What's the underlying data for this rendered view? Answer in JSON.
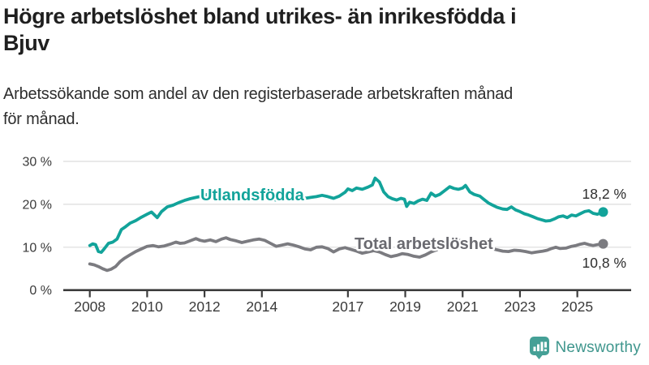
{
  "header": {
    "title": "Högre arbetslöshet bland utrikes- än inrikesfödda i Bjuv",
    "title_lines": [
      "Högre arbetslöshet bland utrikes- än inrikesfödda i",
      "Bjuv"
    ],
    "subtitle": "Arbetssökande som andel av den registerbaserade arbetskraften månad för månad.",
    "subtitle_lines": [
      "Arbetssökande som andel av den registerbaserade arbetskraften månad",
      "för månad."
    ]
  },
  "branding": {
    "name": "Newsworthy",
    "icon": "newsworthy-bar-chart-bubble-icon",
    "icon_color": "#45a096",
    "text_color": "#3f968d"
  },
  "chart_data": {
    "type": "line",
    "title": "Högre arbetslöshet bland utrikes- än inrikesfödda i Bjuv",
    "xlabel": "",
    "ylabel": "",
    "y_unit": "%",
    "ylim": [
      0,
      30
    ],
    "xlim": [
      2007.9,
      2026.8
    ],
    "grid": "horizontal",
    "legend_position": "inline-labels",
    "y_ticks": [
      0,
      10,
      20,
      30
    ],
    "y_tick_labels": [
      "0 %",
      "10 %",
      "20 %",
      "30 %"
    ],
    "x_ticks": [
      2008,
      2010,
      2012,
      2014,
      2017,
      2019,
      2021,
      2023,
      2025
    ],
    "x_tick_labels": [
      "2008",
      "2010",
      "2012",
      "2014",
      "2017",
      "2019",
      "2021",
      "2023",
      "2025"
    ],
    "series": [
      {
        "name": "Utlandsfödda",
        "color": "#12a39a",
        "end_label": "18,2 %",
        "end_value": 18.2,
        "points": [
          [
            2008.0,
            10.4
          ],
          [
            2008.1,
            10.8
          ],
          [
            2008.2,
            10.6
          ],
          [
            2008.3,
            9.0
          ],
          [
            2008.4,
            8.8
          ],
          [
            2008.5,
            9.6
          ],
          [
            2008.65,
            10.9
          ],
          [
            2008.8,
            11.2
          ],
          [
            2008.95,
            11.9
          ],
          [
            2009.1,
            14.1
          ],
          [
            2009.25,
            14.8
          ],
          [
            2009.4,
            15.6
          ],
          [
            2009.6,
            16.2
          ],
          [
            2009.8,
            17.0
          ],
          [
            2010.0,
            17.7
          ],
          [
            2010.15,
            18.2
          ],
          [
            2010.35,
            16.9
          ],
          [
            2010.5,
            18.3
          ],
          [
            2010.7,
            19.4
          ],
          [
            2010.9,
            19.8
          ],
          [
            2011.1,
            20.4
          ],
          [
            2011.3,
            20.9
          ],
          [
            2011.5,
            21.3
          ],
          [
            2011.7,
            21.6
          ],
          [
            2011.9,
            21.9
          ],
          [
            2012.1,
            22.3
          ],
          [
            2012.3,
            22.0
          ],
          [
            2012.5,
            22.4
          ],
          [
            2012.7,
            22.1
          ],
          [
            2012.9,
            22.3
          ],
          [
            2013.1,
            22.5
          ],
          [
            2013.3,
            22.1
          ],
          [
            2013.5,
            21.8
          ],
          [
            2013.7,
            22.0
          ],
          [
            2013.9,
            21.7
          ],
          [
            2014.1,
            21.9
          ],
          [
            2014.3,
            21.3
          ],
          [
            2014.5,
            21.0
          ],
          [
            2014.7,
            21.3
          ],
          [
            2014.9,
            21.5
          ],
          [
            2015.1,
            21.2
          ],
          [
            2015.3,
            21.0
          ],
          [
            2015.5,
            21.4
          ],
          [
            2015.7,
            21.6
          ],
          [
            2015.9,
            21.8
          ],
          [
            2016.1,
            22.1
          ],
          [
            2016.3,
            21.8
          ],
          [
            2016.5,
            21.4
          ],
          [
            2016.7,
            21.9
          ],
          [
            2016.9,
            22.8
          ],
          [
            2017.0,
            23.6
          ],
          [
            2017.15,
            23.2
          ],
          [
            2017.3,
            23.8
          ],
          [
            2017.5,
            23.5
          ],
          [
            2017.7,
            24.0
          ],
          [
            2017.85,
            24.5
          ],
          [
            2017.95,
            26.1
          ],
          [
            2018.1,
            25.2
          ],
          [
            2018.25,
            22.9
          ],
          [
            2018.4,
            21.8
          ],
          [
            2018.55,
            21.3
          ],
          [
            2018.7,
            21.0
          ],
          [
            2018.85,
            21.4
          ],
          [
            2018.97,
            21.2
          ],
          [
            2019.05,
            19.5
          ],
          [
            2019.15,
            20.5
          ],
          [
            2019.3,
            20.2
          ],
          [
            2019.45,
            20.8
          ],
          [
            2019.6,
            21.2
          ],
          [
            2019.75,
            20.9
          ],
          [
            2019.9,
            22.6
          ],
          [
            2020.05,
            21.9
          ],
          [
            2020.2,
            22.3
          ],
          [
            2020.4,
            23.3
          ],
          [
            2020.55,
            24.1
          ],
          [
            2020.7,
            23.7
          ],
          [
            2020.85,
            23.5
          ],
          [
            2021.0,
            23.8
          ],
          [
            2021.1,
            24.4
          ],
          [
            2021.25,
            22.9
          ],
          [
            2021.4,
            22.3
          ],
          [
            2021.6,
            21.9
          ],
          [
            2021.75,
            21.1
          ],
          [
            2021.9,
            20.3
          ],
          [
            2022.05,
            19.8
          ],
          [
            2022.2,
            19.3
          ],
          [
            2022.4,
            18.9
          ],
          [
            2022.55,
            18.8
          ],
          [
            2022.7,
            19.4
          ],
          [
            2022.85,
            18.7
          ],
          [
            2023.0,
            18.3
          ],
          [
            2023.15,
            17.8
          ],
          [
            2023.3,
            17.5
          ],
          [
            2023.45,
            17.1
          ],
          [
            2023.6,
            16.7
          ],
          [
            2023.75,
            16.4
          ],
          [
            2023.9,
            16.1
          ],
          [
            2024.05,
            16.2
          ],
          [
            2024.2,
            16.6
          ],
          [
            2024.35,
            17.1
          ],
          [
            2024.5,
            17.3
          ],
          [
            2024.65,
            16.9
          ],
          [
            2024.8,
            17.5
          ],
          [
            2024.95,
            17.3
          ],
          [
            2025.1,
            17.8
          ],
          [
            2025.25,
            18.3
          ],
          [
            2025.4,
            18.5
          ],
          [
            2025.55,
            17.9
          ],
          [
            2025.7,
            17.7
          ],
          [
            2025.9,
            18.2
          ]
        ]
      },
      {
        "name": "Total arbetslöshet",
        "color": "#7b7b80",
        "end_label": "10,8 %",
        "end_value": 10.8,
        "points": [
          [
            2008.0,
            6.1
          ],
          [
            2008.15,
            5.9
          ],
          [
            2008.3,
            5.5
          ],
          [
            2008.45,
            5.0
          ],
          [
            2008.6,
            4.6
          ],
          [
            2008.75,
            4.9
          ],
          [
            2008.9,
            5.5
          ],
          [
            2009.05,
            6.6
          ],
          [
            2009.2,
            7.4
          ],
          [
            2009.4,
            8.2
          ],
          [
            2009.6,
            9.0
          ],
          [
            2009.8,
            9.6
          ],
          [
            2010.0,
            10.2
          ],
          [
            2010.2,
            10.4
          ],
          [
            2010.4,
            10.1
          ],
          [
            2010.6,
            10.3
          ],
          [
            2010.8,
            10.7
          ],
          [
            2011.0,
            11.2
          ],
          [
            2011.15,
            10.9
          ],
          [
            2011.3,
            11.0
          ],
          [
            2011.5,
            11.5
          ],
          [
            2011.7,
            12.0
          ],
          [
            2011.85,
            11.6
          ],
          [
            2012.0,
            11.4
          ],
          [
            2012.2,
            11.7
          ],
          [
            2012.4,
            11.3
          ],
          [
            2012.6,
            11.9
          ],
          [
            2012.75,
            12.2
          ],
          [
            2012.9,
            11.8
          ],
          [
            2013.1,
            11.5
          ],
          [
            2013.3,
            11.1
          ],
          [
            2013.5,
            11.4
          ],
          [
            2013.7,
            11.7
          ],
          [
            2013.9,
            11.9
          ],
          [
            2014.1,
            11.6
          ],
          [
            2014.3,
            10.9
          ],
          [
            2014.5,
            10.2
          ],
          [
            2014.7,
            10.5
          ],
          [
            2014.9,
            10.8
          ],
          [
            2015.1,
            10.5
          ],
          [
            2015.3,
            10.1
          ],
          [
            2015.5,
            9.6
          ],
          [
            2015.7,
            9.4
          ],
          [
            2015.9,
            10.0
          ],
          [
            2016.1,
            10.1
          ],
          [
            2016.3,
            9.7
          ],
          [
            2016.5,
            8.9
          ],
          [
            2016.7,
            9.6
          ],
          [
            2016.9,
            9.9
          ],
          [
            2017.1,
            9.5
          ],
          [
            2017.3,
            9.1
          ],
          [
            2017.5,
            8.6
          ],
          [
            2017.7,
            8.9
          ],
          [
            2017.9,
            9.2
          ],
          [
            2018.1,
            8.9
          ],
          [
            2018.3,
            8.3
          ],
          [
            2018.5,
            7.8
          ],
          [
            2018.7,
            8.1
          ],
          [
            2018.9,
            8.5
          ],
          [
            2019.1,
            8.3
          ],
          [
            2019.3,
            7.9
          ],
          [
            2019.5,
            7.7
          ],
          [
            2019.7,
            8.2
          ],
          [
            2019.9,
            8.9
          ],
          [
            2020.1,
            9.4
          ],
          [
            2020.3,
            11.0
          ],
          [
            2020.5,
            12.0
          ],
          [
            2020.65,
            12.2
          ],
          [
            2020.8,
            11.7
          ],
          [
            2021.0,
            11.4
          ],
          [
            2021.2,
            11.2
          ],
          [
            2021.4,
            10.8
          ],
          [
            2021.6,
            10.4
          ],
          [
            2021.8,
            10.0
          ],
          [
            2022.0,
            9.7
          ],
          [
            2022.2,
            9.4
          ],
          [
            2022.4,
            9.1
          ],
          [
            2022.6,
            9.0
          ],
          [
            2022.8,
            9.3
          ],
          [
            2023.0,
            9.2
          ],
          [
            2023.2,
            9.0
          ],
          [
            2023.4,
            8.7
          ],
          [
            2023.6,
            8.9
          ],
          [
            2023.8,
            9.1
          ],
          [
            2023.95,
            9.3
          ],
          [
            2024.1,
            9.7
          ],
          [
            2024.25,
            10.0
          ],
          [
            2024.4,
            9.7
          ],
          [
            2024.6,
            9.8
          ],
          [
            2024.8,
            10.2
          ],
          [
            2024.95,
            10.4
          ],
          [
            2025.1,
            10.7
          ],
          [
            2025.25,
            10.9
          ],
          [
            2025.4,
            10.6
          ],
          [
            2025.55,
            10.4
          ],
          [
            2025.7,
            10.6
          ],
          [
            2025.9,
            10.8
          ]
        ]
      }
    ]
  }
}
